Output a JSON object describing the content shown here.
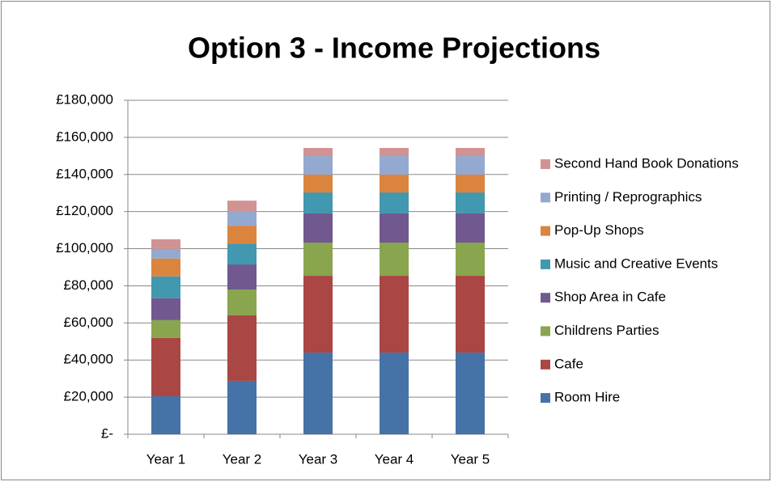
{
  "chart_data": {
    "type": "stacked_bar",
    "title": "Option 3 - Income Projections",
    "categories": [
      "Year 1",
      "Year 2",
      "Year 3",
      "Year 4",
      "Year 5"
    ],
    "series": [
      {
        "name": "Room Hire",
        "color": "#4572a7",
        "values": [
          20500,
          28800,
          44000,
          44000,
          44000
        ]
      },
      {
        "name": "Cafe",
        "color": "#aa4643",
        "values": [
          31400,
          35300,
          41400,
          41400,
          41400
        ]
      },
      {
        "name": "Childrens Parties",
        "color": "#89a54e",
        "values": [
          9600,
          13900,
          17900,
          17900,
          17900
        ]
      },
      {
        "name": "Shop Area in Cafe",
        "color": "#71588f",
        "values": [
          11800,
          13500,
          15700,
          15700,
          15700
        ]
      },
      {
        "name": "Music and Creative Events",
        "color": "#4198af",
        "values": [
          11800,
          11300,
          11300,
          11300,
          11300
        ]
      },
      {
        "name": "Pop-Up Shops",
        "color": "#db843d",
        "values": [
          9600,
          9600,
          9600,
          9600,
          9600
        ]
      },
      {
        "name": "Printing / Reprographics",
        "color": "#93a9cf",
        "values": [
          5200,
          7800,
          10000,
          10000,
          10000
        ]
      },
      {
        "name": "Second Hand Book Donations",
        "color": "#d19392",
        "values": [
          5200,
          5700,
          4400,
          4400,
          4400
        ]
      }
    ],
    "ylim": [
      0,
      180000
    ],
    "yticks": [
      {
        "value": 0,
        "label": "£-"
      },
      {
        "value": 20000,
        "label": "£20,000"
      },
      {
        "value": 40000,
        "label": "£40,000"
      },
      {
        "value": 60000,
        "label": "£60,000"
      },
      {
        "value": 80000,
        "label": "£80,000"
      },
      {
        "value": 100000,
        "label": "£100,000"
      },
      {
        "value": 120000,
        "label": "£120,000"
      },
      {
        "value": 140000,
        "label": "£140,000"
      },
      {
        "value": 160000,
        "label": "£160,000"
      },
      {
        "value": 180000,
        "label": "£180,000"
      }
    ],
    "grid": true,
    "legend": "right"
  }
}
